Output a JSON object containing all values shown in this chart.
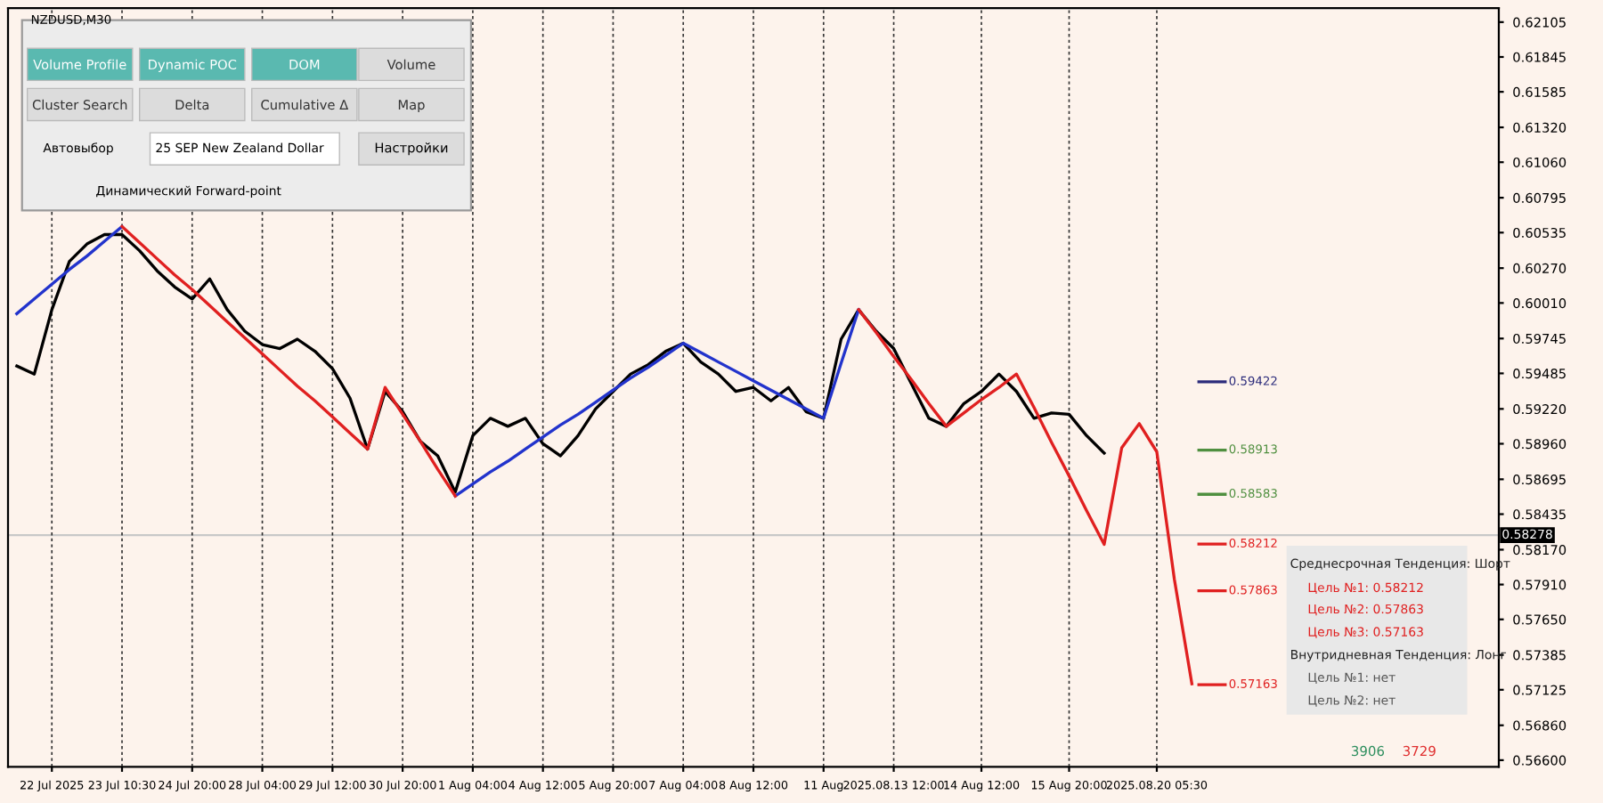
{
  "chart_data": {
    "type": "line",
    "title": "NZDUSD,M30",
    "categories": [
      null,
      null,
      "22 Jul 2025",
      null,
      null,
      null,
      "23 Jul 10:30",
      null,
      null,
      null,
      "24 Jul 20:00",
      null,
      null,
      null,
      "28 Jul 04:00",
      null,
      null,
      null,
      "29 Jul 12:00",
      null,
      null,
      null,
      "30 Jul 20:00",
      null,
      null,
      null,
      "1 Aug 04:00",
      null,
      null,
      null,
      "4 Aug 12:00",
      null,
      null,
      null,
      "5 Aug 20:00",
      null,
      null,
      null,
      "7 Aug 04:00",
      null,
      null,
      null,
      "8 Aug 12:00",
      null,
      null,
      null,
      "11 Aug",
      null,
      null,
      null,
      "2025.08.13 12:00",
      null,
      null,
      null,
      null,
      "14 Aug 12:00",
      null,
      null,
      null,
      null,
      "15 Aug 20:00",
      null,
      null,
      null,
      null,
      "2025.08.20 05:30",
      null,
      null,
      null,
      null,
      null,
      null,
      null,
      null,
      null,
      null,
      null,
      null,
      null,
      null,
      null,
      null,
      null,
      null,
      null
    ],
    "ylim": [
      0.5655,
      0.6221
    ],
    "yticks": [
      0.62105,
      0.61845,
      0.61585,
      {
        "value": 0.6132,
        "label": "0.61320"
      },
      {
        "value": 0.6106,
        "label": "0.61060"
      },
      0.60795,
      0.60535,
      {
        "value": 0.6027,
        "label": "0.60270"
      },
      {
        "value": 0.6001,
        "label": "0.60010"
      },
      0.59745,
      0.59485,
      {
        "value": 0.5922,
        "label": "0.59220"
      },
      {
        "value": 0.5896,
        "label": "0.58960"
      },
      0.58695,
      0.58435,
      {
        "value": 0.5817,
        "label": "0.58170"
      },
      {
        "value": 0.5791,
        "label": "0.57910"
      },
      {
        "value": 0.5765,
        "label": "0.57650"
      },
      0.57385,
      0.57125,
      {
        "value": 0.5686,
        "label": "0.56860"
      },
      {
        "value": 0.566,
        "label": "0.56600"
      }
    ],
    "grid": "x",
    "series": [
      {
        "color": "#000000",
        "values": [
          0.5954,
          0.5948,
          0.5996,
          0.6032,
          0.6045,
          0.6052,
          0.6052,
          0.604,
          0.6025,
          0.6013,
          0.6004,
          0.6019,
          0.5996,
          0.598,
          0.597,
          0.5967,
          0.5974,
          0.5965,
          0.5952,
          0.593,
          0.5892,
          0.5935,
          0.592,
          0.5898,
          0.5887,
          0.586,
          0.5902,
          0.5915,
          0.5909,
          0.5915,
          0.5896,
          0.5887,
          0.5902,
          0.5922,
          0.5935,
          0.5948,
          0.5955,
          0.5965,
          0.5971,
          0.5957,
          0.5948,
          0.5935,
          0.5938,
          0.5928,
          0.5938,
          0.592,
          0.5915,
          0.5974,
          0.5996,
          0.598,
          0.5967,
          0.5941,
          0.5915,
          0.5909,
          0.5926,
          0.5935,
          0.5948,
          0.5935,
          0.5915,
          0.5919,
          0.5918,
          0.5902,
          0.5889,
          null,
          null,
          null,
          null,
          null,
          null,
          null,
          null,
          null,
          null,
          null,
          null,
          null,
          null,
          null,
          null,
          null,
          null,
          null,
          null,
          null,
          null
        ]
      },
      {
        "color": "#2233cc",
        "values": [
          0.5993,
          0.6004,
          0.6015,
          0.6026,
          0.6036,
          0.6047,
          0.6058,
          null,
          null,
          null,
          null,
          null,
          null,
          null,
          null,
          null,
          null,
          null,
          null,
          null,
          null,
          null,
          null,
          null,
          null,
          0.5857,
          0.5866,
          0.5875,
          0.5883,
          0.5892,
          0.5901,
          0.591,
          0.5918,
          0.5927,
          0.5936,
          0.5945,
          0.5953,
          0.5962,
          0.5971,
          0.5964,
          0.5957,
          0.595,
          0.5943,
          0.5936,
          0.5929,
          0.5922,
          0.5915,
          0.5956,
          0.5996,
          null,
          null,
          null,
          null,
          null,
          null,
          null,
          null,
          null,
          null,
          null,
          null,
          null,
          null,
          null,
          null,
          null,
          null,
          null,
          null,
          null,
          null,
          null,
          null,
          null,
          null,
          null,
          null,
          null,
          null,
          null,
          null,
          null,
          null,
          null,
          null
        ]
      },
      {
        "color": "#e02020",
        "values": [
          null,
          null,
          null,
          null,
          null,
          null,
          0.6058,
          0.6046,
          0.6034,
          0.6022,
          0.6011,
          0.5999,
          0.5987,
          0.5975,
          0.5963,
          0.5951,
          0.5939,
          0.5928,
          0.5916,
          0.5904,
          0.5892,
          0.5938,
          0.5918,
          0.5898,
          0.5877,
          0.5857,
          null,
          null,
          null,
          null,
          null,
          null,
          null,
          null,
          null,
          null,
          null,
          null,
          null,
          null,
          null,
          null,
          null,
          null,
          null,
          null,
          null,
          null,
          0.5996,
          0.5979,
          0.5961,
          0.5944,
          0.5926,
          0.5909,
          0.5919,
          0.5929,
          0.5938,
          0.5948,
          0.5923,
          0.5897,
          0.5872,
          0.5846,
          0.5821,
          0.5893,
          0.5911,
          0.589,
          0.5795,
          0.5717,
          null,
          null,
          null,
          null,
          null,
          null,
          null,
          null,
          null,
          null,
          null,
          null,
          null,
          null,
          null,
          null,
          null
        ]
      }
    ],
    "ref_lines": [
      {
        "axis": "y",
        "value": 0.59422,
        "label": "0.59422",
        "color": "#2a2a7a"
      },
      {
        "axis": "y",
        "value": 0.58913,
        "label": "0.58913",
        "color": "#4f8f3f"
      },
      {
        "axis": "y",
        "value": 0.58583,
        "label": "0.58583",
        "color": "#4f8f3f"
      },
      {
        "axis": "y",
        "value": 0.58212,
        "label": "0.58212",
        "color": "#e02020"
      },
      {
        "axis": "y",
        "value": 0.57863,
        "label": "0.57863",
        "color": "#e02020"
      },
      {
        "axis": "y",
        "value": 0.57163,
        "label": "0.57163",
        "color": "#e02020"
      },
      {
        "axis": "y",
        "value": 0.58278,
        "label": "0.58278",
        "color": "#c8c8c8"
      }
    ],
    "annotations": [
      "Volume Profile",
      "Dynamic POC",
      "DOM",
      "Volume",
      "Cluster Search",
      "Delta",
      "Cumulative Δ",
      "Map",
      "Автовыбор",
      "25 SEP New Zealand Dollar",
      "Настройки",
      "Динамический Forward-point",
      "Среднесрочная Тенденция: Шорт",
      "Цель №1: 0.58212",
      "Цель №2: 0.57863",
      "Цель №3: 0.57163",
      "Внутридневная Тенденция: Лонг",
      "Цель №1: нет",
      "Цель №2: нет",
      "3906",
      "3729"
    ]
  }
}
